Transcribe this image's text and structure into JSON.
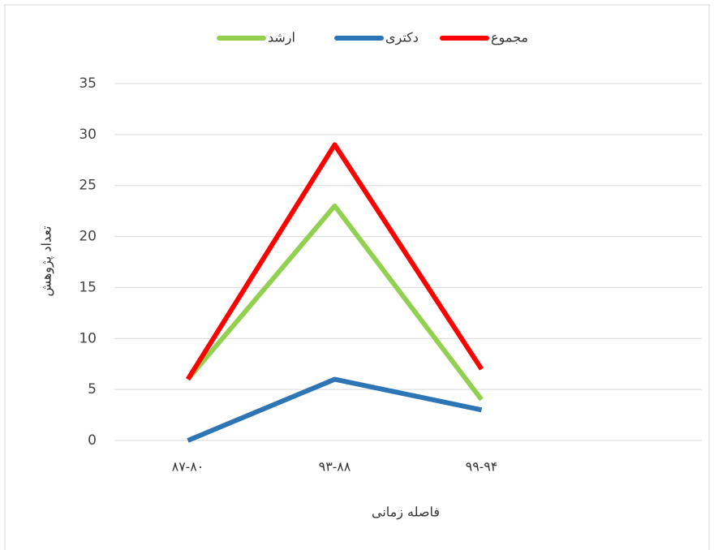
{
  "chart_data": {
    "type": "line",
    "x_label": "فاصله زمانی",
    "y_label": "تعداد پژوهش",
    "categories": [
      "۸۷-۸۰",
      "۹۳-۸۸",
      "۹۹-۹۴",
      null
    ],
    "series": [
      {
        "name": "ارشد",
        "color": "#92d050",
        "values": [
          6,
          23,
          4,
          null
        ]
      },
      {
        "name": "دکتری",
        "color": "#2e75b6",
        "values": [
          0,
          6,
          3,
          null
        ]
      },
      {
        "name": "مجموع",
        "color": "#ff0000",
        "values": [
          6,
          29,
          7,
          null
        ]
      }
    ],
    "ylim": [
      0,
      35
    ],
    "yticks": [
      0,
      5,
      10,
      15,
      20,
      25,
      30,
      35
    ],
    "grid": true
  }
}
